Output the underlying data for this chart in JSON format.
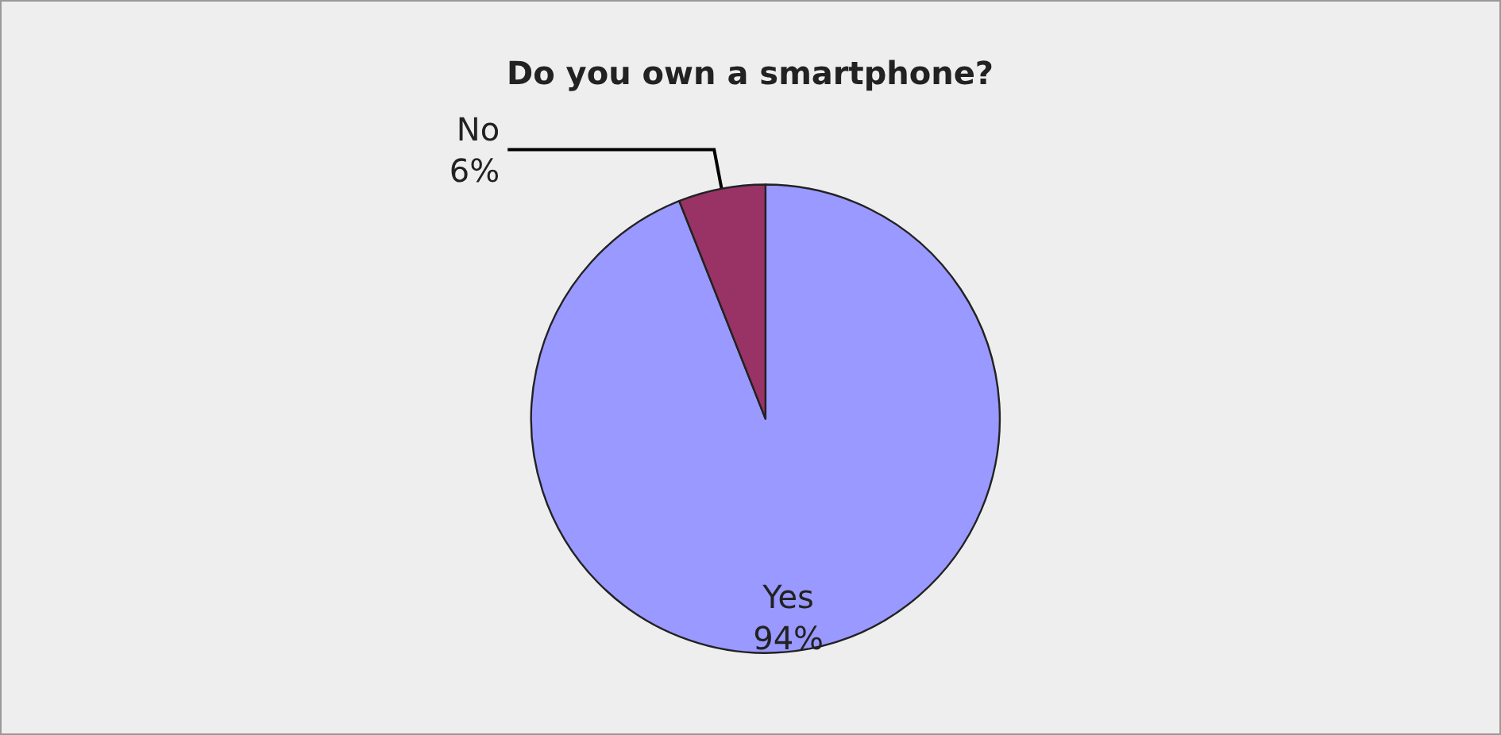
{
  "chart_data": {
    "type": "pie",
    "title": "Do you own a smartphone?",
    "categories": [
      "Yes",
      "No"
    ],
    "values": [
      94,
      6
    ],
    "colors": [
      "#9999ff",
      "#993366"
    ],
    "value_labels": [
      "94%",
      "6%"
    ],
    "legend": false
  }
}
